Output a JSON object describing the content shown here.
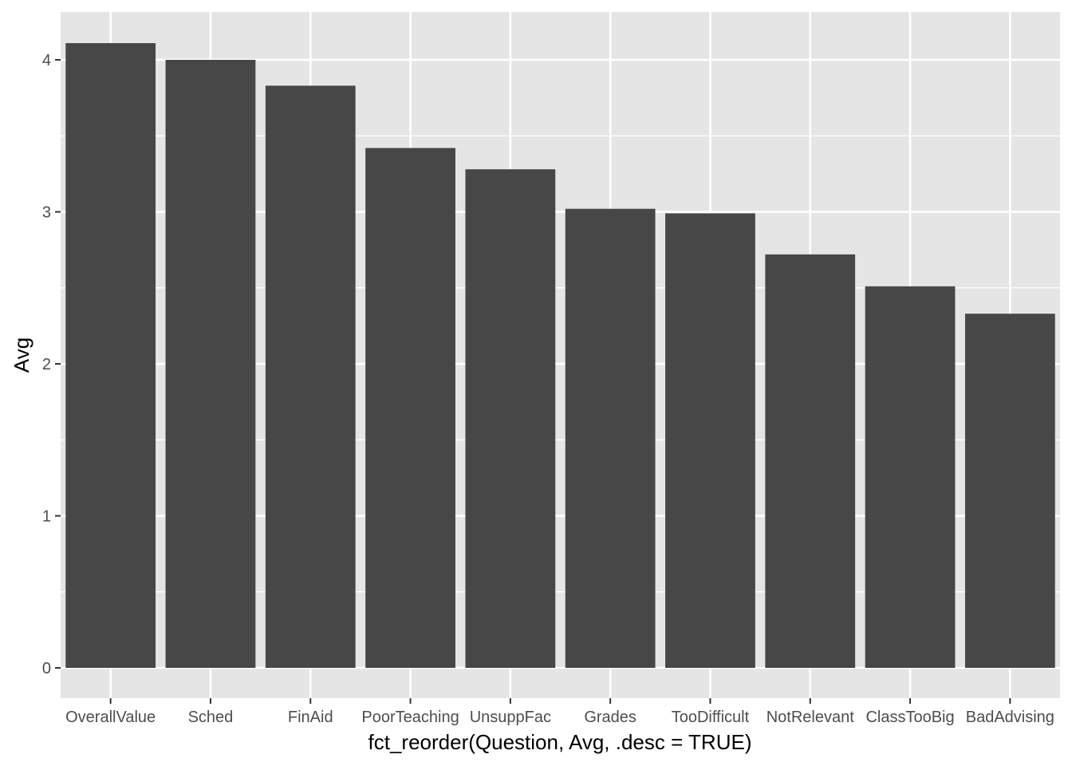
{
  "chart_data": {
    "type": "bar",
    "xlabel": "fct_reorder(Question, Avg, .desc = TRUE)",
    "ylabel": "Avg",
    "categories": [
      "OverallValue",
      "Sched",
      "FinAid",
      "PoorTeaching",
      "UnsuppFac",
      "Grades",
      "TooDifficult",
      "NotRelevant",
      "ClassTooBig",
      "BadAdvising"
    ],
    "values": [
      4.11,
      4.0,
      3.83,
      3.42,
      3.28,
      3.02,
      2.99,
      2.72,
      2.51,
      2.33
    ],
    "ylim": [
      0,
      4.3
    ],
    "yticks": [
      0,
      1,
      2,
      3,
      4
    ],
    "grid": true,
    "colors": {
      "panel": "#e5e5e5",
      "grid": "#ffffff",
      "bar": "#474747",
      "tick_label": "#4d4d4d",
      "tick_mark": "#333333"
    }
  }
}
